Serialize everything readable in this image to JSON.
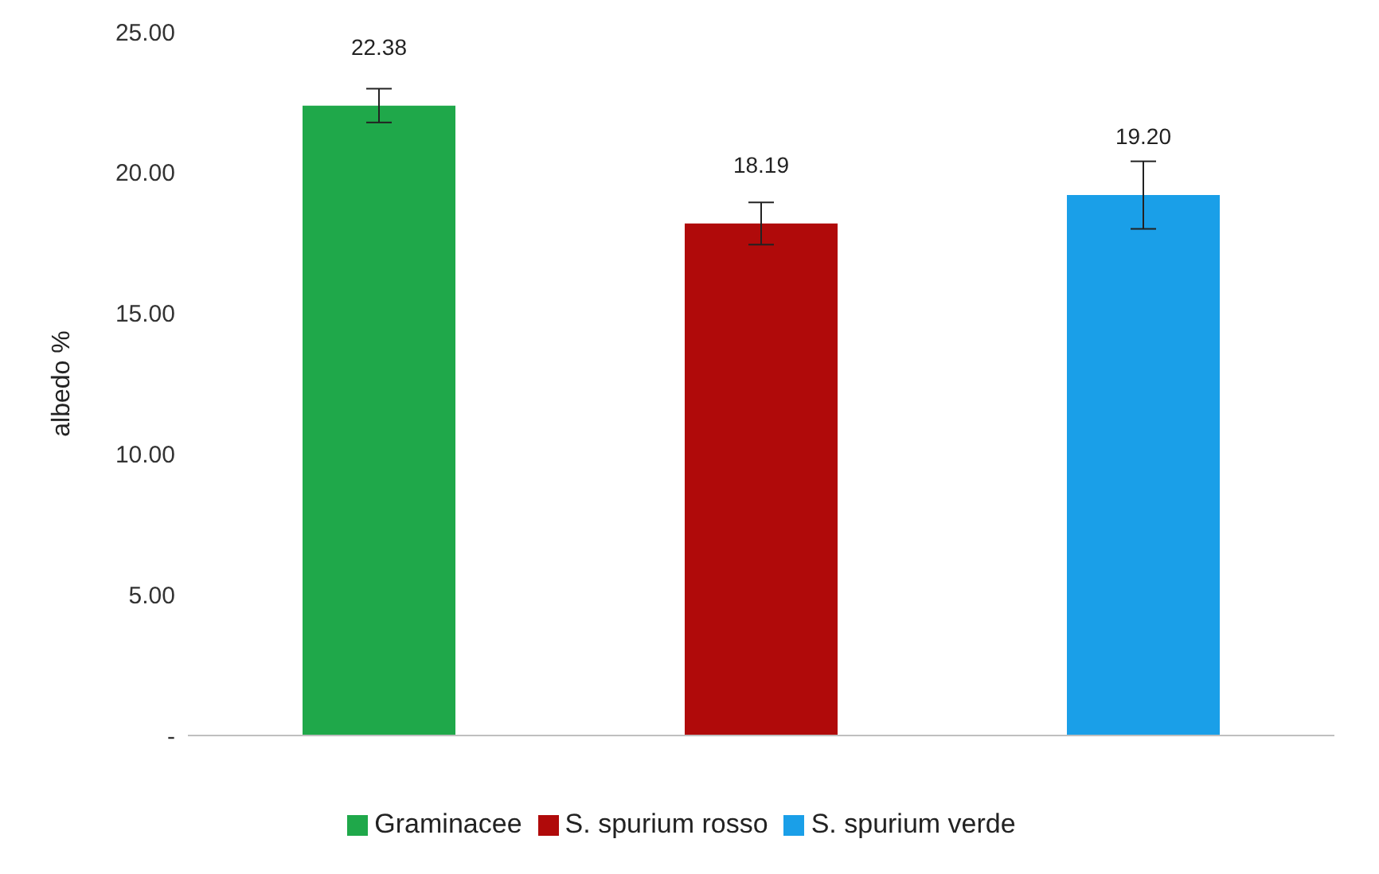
{
  "chart_data": {
    "type": "bar",
    "ylabel": "albedo %",
    "categories": [
      null,
      null,
      null
    ],
    "series": [
      {
        "name": "Graminacee",
        "color": "#1fa84a",
        "values": [
          22.38,
          null,
          null
        ],
        "errors": [
          0.6,
          null,
          null
        ],
        "value_labels": [
          "22.38",
          null,
          null
        ]
      },
      {
        "name": "S. spurium rosso",
        "color": "#b00a0a",
        "values": [
          null,
          18.19,
          null
        ],
        "errors": [
          null,
          0.75,
          null
        ],
        "value_labels": [
          null,
          "18.19",
          null
        ]
      },
      {
        "name": "S. spurium verde",
        "color": "#1a9fe8",
        "values": [
          null,
          null,
          19.2
        ],
        "errors": [
          null,
          null,
          1.2
        ],
        "value_labels": [
          null,
          null,
          "19.20"
        ]
      }
    ],
    "ylim": [
      0,
      25
    ],
    "yticks": [
      {
        "value": 0,
        "label": "-"
      },
      {
        "value": 5,
        "label": "5.00"
      },
      {
        "value": 10,
        "label": "10.00"
      },
      {
        "value": 15,
        "label": "15.00"
      },
      {
        "value": 20,
        "label": "20.00"
      },
      {
        "value": 25,
        "label": "25.00"
      }
    ],
    "grid": false,
    "legend": "bottom"
  }
}
